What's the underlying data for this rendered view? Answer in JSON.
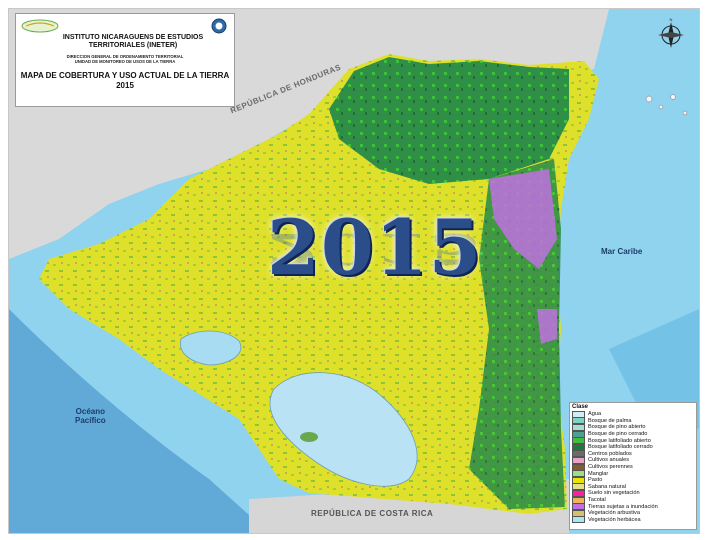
{
  "title_block": {
    "institute": "INSTITUTO NICARAGUENS DE ESTUDIOS TERRITORIALES (INETER)",
    "direction": "DIRECCION GENERAL DE ORDENAMIENTO TERRITORIAL",
    "unit": "UNIDAD DE MONITOREO DE USOS DE LA TIERRA",
    "map_title": "MAPA DE COBERTURA Y USO ACTUAL DE LA TIERRA 2015"
  },
  "year_banner": "2015",
  "labels": {
    "honduras": "REPÚBLICA DE HONDURAS",
    "costa_rica": "REPÚBLICA DE COSTA RICA",
    "caribbean": "Mar Caribe",
    "pacific_line1": "Océano",
    "pacific_line2": "Pacífico"
  },
  "legend": {
    "title": "Clase",
    "items": [
      {
        "label": "Agua",
        "color": "#cfeef9"
      },
      {
        "label": "Bosque de palma",
        "color": "#7fd3c4"
      },
      {
        "label": "Bosque de pino abierto",
        "color": "#a6ddd6"
      },
      {
        "label": "Bosque de pino cerrado",
        "color": "#4f9f95"
      },
      {
        "label": "Bosque latifoliado abierto",
        "color": "#3fbf3f"
      },
      {
        "label": "Bosque latifoliado cerrado",
        "color": "#1e7a3c"
      },
      {
        "label": "Centros poblados",
        "color": "#6b6b6b"
      },
      {
        "label": "Cultivos anuales",
        "color": "#e9a3c9"
      },
      {
        "label": "Cultivos perennes",
        "color": "#8a5a2b"
      },
      {
        "label": "Manglar",
        "color": "#9adf8a"
      },
      {
        "label": "Pasto",
        "color": "#e6e600"
      },
      {
        "label": "Sabana natural",
        "color": "#e8dd8a"
      },
      {
        "label": "Suelo sin vegetación",
        "color": "#ff1fa0"
      },
      {
        "label": "Tacotal",
        "color": "#f2b35b"
      },
      {
        "label": "Tierras sujetas a inundación",
        "color": "#c070e0"
      },
      {
        "label": "Vegetación arbustiva",
        "color": "#d6c06a"
      },
      {
        "label": "Vegetación herbácea",
        "color": "#a8e6f2"
      }
    ]
  }
}
